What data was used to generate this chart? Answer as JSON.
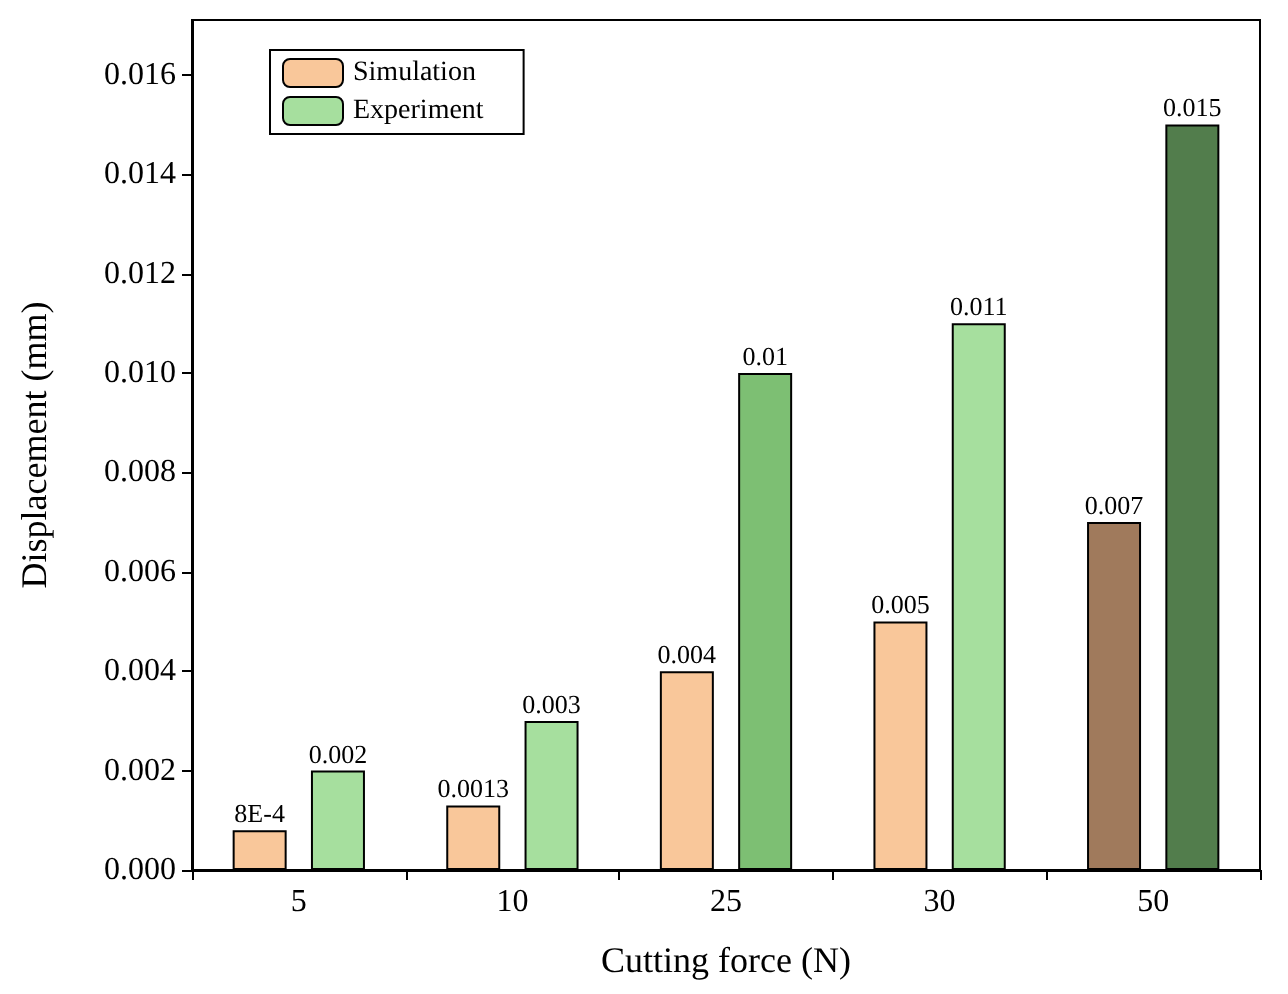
{
  "chart_data": {
    "type": "bar",
    "xlabel": "Cutting force (N)",
    "ylabel": "Displacement (mm)",
    "categories": [
      "5",
      "10",
      "25",
      "30",
      "50"
    ],
    "series": [
      {
        "name": "Simulation",
        "color": "#f9c79a",
        "colors": [
          "#f9c79a",
          "#f9c79a",
          "#f9c79a",
          "#f9c79a",
          "#a07a5c"
        ],
        "values": [
          0.0008,
          0.0013,
          0.004,
          0.005,
          0.007
        ],
        "value_labels": [
          "8E-4",
          "0.0013",
          "0.004",
          "0.005",
          "0.007"
        ]
      },
      {
        "name": "Experiment",
        "color": "#a6df9e",
        "colors": [
          "#a6df9e",
          "#a6df9e",
          "#7dbf73",
          "#a6df9e",
          "#527d4c"
        ],
        "values": [
          0.002,
          0.003,
          0.01,
          0.011,
          0.015
        ],
        "value_labels": [
          "0.002",
          "0.003",
          "0.01",
          "0.011",
          "0.015"
        ]
      }
    ],
    "ylim": [
      0,
      0.0171
    ],
    "yticks": [
      {
        "value": 0,
        "label": "0.000"
      },
      {
        "value": 0.002,
        "label": "0.002"
      },
      {
        "value": 0.004,
        "label": "0.004"
      },
      {
        "value": 0.006,
        "label": "0.006"
      },
      {
        "value": 0.008,
        "label": "0.008"
      },
      {
        "value": 0.01,
        "label": "0.010"
      },
      {
        "value": 0.012,
        "label": "0.012"
      },
      {
        "value": 0.014,
        "label": "0.014"
      },
      {
        "value": 0.016,
        "label": "0.016"
      }
    ],
    "grid": false,
    "legend": "top left"
  }
}
